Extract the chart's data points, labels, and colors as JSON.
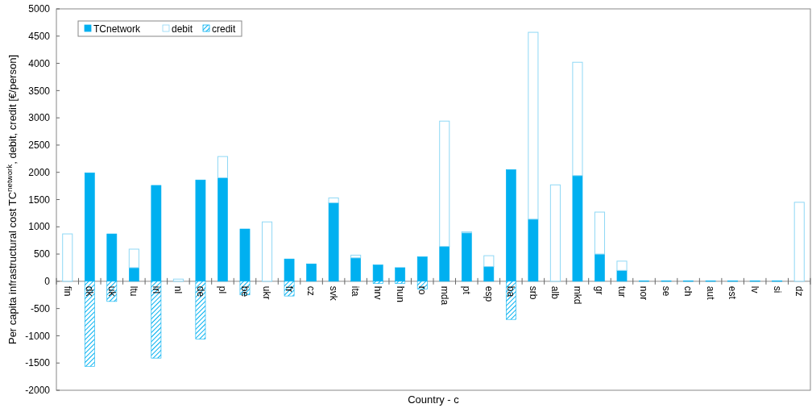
{
  "chart_data": {
    "type": "bar",
    "stacked": true,
    "xlabel": "Country - c",
    "ylabel": "Per capita infrastructural cost TC$^{network}$, debit, credit [€/person]",
    "categories": [
      "fin",
      "dk",
      "uk",
      "ltu",
      "irl",
      "nl",
      "de",
      "pl",
      "be",
      "ukr",
      "fr",
      "cz",
      "svk",
      "ita",
      "hrv",
      "hun",
      "ro",
      "mda",
      "pt",
      "esp",
      "ba",
      "srb",
      "alb",
      "mkd",
      "gr",
      "tur",
      "nor",
      "se",
      "ch",
      "aut",
      "est",
      "lv",
      "si",
      "dz"
    ],
    "series": [
      {
        "name": "TCnetwork",
        "color": "#00b0f0",
        "values": [
          0,
          1990,
          870,
          250,
          1760,
          0,
          1860,
          1900,
          960,
          0,
          410,
          320,
          1440,
          430,
          300,
          250,
          450,
          640,
          890,
          270,
          2050,
          1140,
          0,
          1940,
          500,
          200,
          10,
          10,
          10,
          10,
          10,
          10,
          10,
          0
        ]
      },
      {
        "name": "debit",
        "color": "#8fd8f5",
        "values": [
          870,
          0,
          0,
          340,
          0,
          40,
          0,
          390,
          0,
          1090,
          0,
          0,
          90,
          50,
          0,
          0,
          0,
          2300,
          20,
          200,
          0,
          3430,
          1770,
          2080,
          770,
          170,
          0,
          0,
          0,
          0,
          0,
          0,
          0,
          1450
        ]
      },
      {
        "name": "credit",
        "color": "#00b0f0",
        "values": [
          0,
          -1560,
          -370,
          0,
          -1410,
          0,
          -1060,
          0,
          -250,
          0,
          -270,
          0,
          0,
          0,
          -40,
          -40,
          -140,
          0,
          0,
          0,
          -700,
          0,
          0,
          0,
          0,
          0,
          0,
          0,
          0,
          0,
          0,
          0,
          0,
          0
        ]
      }
    ],
    "ylim": [
      -2000,
      5000
    ],
    "yticks": [
      -2000,
      -1500,
      -1000,
      -500,
      0,
      500,
      1000,
      1500,
      2000,
      2500,
      3000,
      3500,
      4000,
      4500,
      5000
    ],
    "legend": "top left",
    "grid": false
  }
}
